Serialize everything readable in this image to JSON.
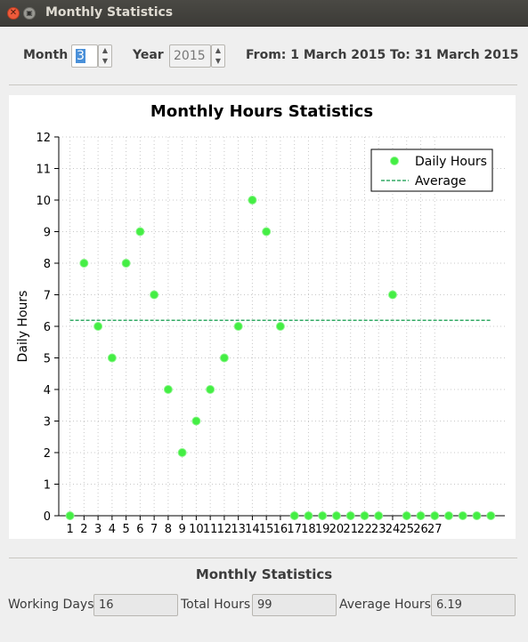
{
  "window": {
    "title": "Monthly Statistics",
    "close_glyph": "✕",
    "max_glyph": "▣"
  },
  "controls": {
    "month_label": "Month",
    "month_value": "3",
    "year_label": "Year",
    "year_value": "2015",
    "from_text": "From: 1 March 2015",
    "to_text": "To: 31 March 2015",
    "spin_up": "▲",
    "spin_down": "▼"
  },
  "chart_data": {
    "type": "scatter",
    "title": "Monthly Hours Statistics",
    "ylabel": "Daily Hours",
    "xlabel": "",
    "ylim": [
      0,
      12
    ],
    "yticks": [
      0,
      1,
      2,
      3,
      4,
      5,
      6,
      7,
      8,
      9,
      10,
      11,
      12
    ],
    "xticks": [
      "1",
      "2",
      "3",
      "4",
      "5",
      "6",
      "7",
      "8",
      "9",
      "10",
      "11",
      "12",
      "13",
      "14",
      "15",
      "16",
      "17",
      "18",
      "19",
      "20",
      "21",
      "22",
      "23",
      "24",
      "25",
      "26",
      "27"
    ],
    "grid": true,
    "legend_position": "top-right",
    "series": [
      {
        "name": "Daily Hours",
        "color": "#44ee44",
        "x": [
          1,
          2,
          3,
          4,
          5,
          6,
          7,
          8,
          9,
          10,
          11,
          12,
          13,
          14,
          15,
          16,
          17,
          18,
          19,
          20,
          21,
          22,
          23,
          24,
          25,
          26,
          27,
          28,
          29,
          30,
          31
        ],
        "y": [
          0,
          8,
          6,
          5,
          8,
          9,
          7,
          4,
          2,
          3,
          4,
          5,
          6,
          10,
          9,
          6,
          0,
          0,
          0,
          0,
          0,
          0,
          0,
          7,
          0,
          0,
          0,
          0,
          0,
          0,
          0
        ]
      },
      {
        "name": "Average",
        "color": "#33aa66",
        "style": "dashed",
        "value": 6.19
      }
    ]
  },
  "summary": {
    "title": "Monthly Statistics",
    "working_days_label": "Working Days",
    "working_days_value": "16",
    "total_hours_label": "Total Hours",
    "total_hours_value": "99",
    "average_hours_label": "Average Hours",
    "average_hours_value": "6.19"
  }
}
